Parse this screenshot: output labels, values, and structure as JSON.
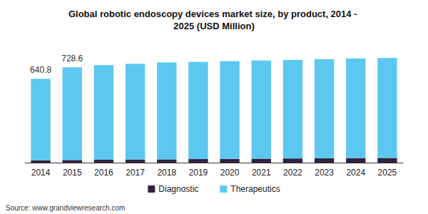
{
  "chart_data": {
    "type": "bar",
    "title": "Global robotic endoscopy devices market size, by product, 2014 - 2025 (USD Million)",
    "source": "Source: www.grandviewresearch.com",
    "categories": [
      "2014",
      "2015",
      "2016",
      "2017",
      "2018",
      "2019",
      "2020",
      "2021",
      "2022",
      "2023",
      "2024",
      "2025"
    ],
    "series": [
      {
        "name": "Diagnostic",
        "color": "#33213f",
        "values": [
          18,
          20,
          22,
          24,
          25,
          27,
          28,
          30,
          32,
          33,
          35,
          36
        ]
      },
      {
        "name": "Therapeutics",
        "color": "#5cc8f0",
        "values": [
          622.8,
          708.6,
          723,
          731,
          740,
          743,
          747,
          750,
          753,
          757,
          760,
          764
        ]
      }
    ],
    "annotations": [
      {
        "x": "2014",
        "y": 640.8,
        "text": "640.8"
      },
      {
        "x": "2015",
        "y": 728.6,
        "text": "728.6"
      }
    ],
    "stacked": true,
    "legend": "bottom",
    "grid": false,
    "tick_labels": "x",
    "ylim": [
      0,
      850
    ],
    "yticks": [
      0,
      850
    ]
  }
}
